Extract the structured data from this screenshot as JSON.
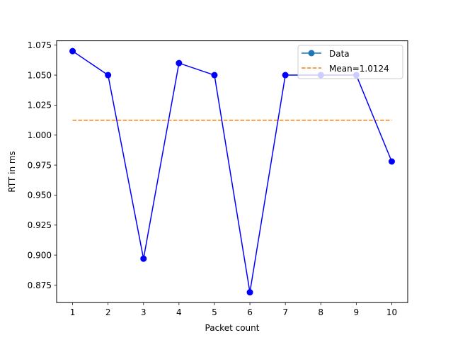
{
  "chart_data": {
    "type": "line",
    "title": "",
    "xlabel": "Packet count",
    "ylabel": "RTT in ms",
    "x": [
      1,
      2,
      3,
      4,
      5,
      6,
      7,
      8,
      9,
      10
    ],
    "series": [
      {
        "name": "Data",
        "values": [
          1.07,
          1.05,
          0.897,
          1.06,
          1.05,
          0.869,
          1.05,
          1.05,
          1.05,
          0.978
        ],
        "line_color": "#0000ff",
        "marker_color": "#0000ff",
        "legend_color": "#1f77b4",
        "marker": "circle"
      },
      {
        "name": "Mean=1.0124",
        "y_constant": 1.0124,
        "x_range": [
          1,
          10
        ],
        "color": "#ff7f0e",
        "style": "dashed"
      }
    ],
    "xlim": [
      0.55,
      10.45
    ],
    "ylim": [
      0.8604,
      1.0786
    ],
    "xticks": [
      "1",
      "2",
      "3",
      "4",
      "5",
      "6",
      "7",
      "8",
      "9",
      "10"
    ],
    "yticks": [
      "0.875",
      "0.900",
      "0.925",
      "0.950",
      "0.975",
      "1.000",
      "1.025",
      "1.050",
      "1.075"
    ],
    "grid": false,
    "legend_position": "top-right"
  }
}
